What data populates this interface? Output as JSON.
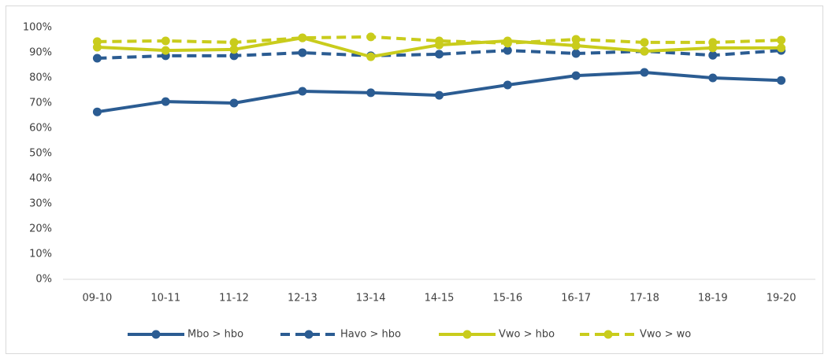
{
  "chart_data": {
    "type": "line",
    "categories": [
      "09-10",
      "10-11",
      "11-12",
      "12-13",
      "13-14",
      "14-15",
      "15-16",
      "16-17",
      "17-18",
      "18-19",
      "19-20"
    ],
    "series": [
      {
        "name": "Mbo > hbo",
        "color": "#2b5c92",
        "dashed": false,
        "values": [
          66.5,
          70.6,
          70,
          74.7,
          74.1,
          73.1,
          77.2,
          80.9,
          82.2,
          80,
          79
        ]
      },
      {
        "name": "Havo > hbo",
        "color": "#2b5c92",
        "dashed": true,
        "values": [
          87.8,
          88.8,
          88.8,
          90,
          88.8,
          89.4,
          90.9,
          89.7,
          90.6,
          89,
          90.9
        ]
      },
      {
        "name": "Vwo > hbo",
        "color": "#c9cc1c",
        "dashed": false,
        "values": [
          92.2,
          90.9,
          91.3,
          95.9,
          88.4,
          93.1,
          94.7,
          92.8,
          90.6,
          91.9,
          91.9
        ]
      },
      {
        "name": "Vwo > wo",
        "color": "#c9cc1c",
        "dashed": true,
        "values": [
          94.4,
          94.7,
          94.1,
          95.9,
          96.3,
          94.7,
          93.8,
          95.3,
          94.1,
          94.1,
          95
        ]
      }
    ],
    "ylim": [
      0,
      100
    ],
    "yticks": [
      {
        "value": 0,
        "label": "0%"
      },
      {
        "value": 10,
        "label": "10%"
      },
      {
        "value": 20,
        "label": "20%"
      },
      {
        "value": 30,
        "label": "30%"
      },
      {
        "value": 40,
        "label": "40%"
      },
      {
        "value": 50,
        "label": "50%"
      },
      {
        "value": 60,
        "label": "60%"
      },
      {
        "value": 70,
        "label": "70%"
      },
      {
        "value": 80,
        "label": "80%"
      },
      {
        "value": 90,
        "label": "90%"
      },
      {
        "value": 100,
        "label": "100%"
      }
    ],
    "legend": "bottom"
  }
}
